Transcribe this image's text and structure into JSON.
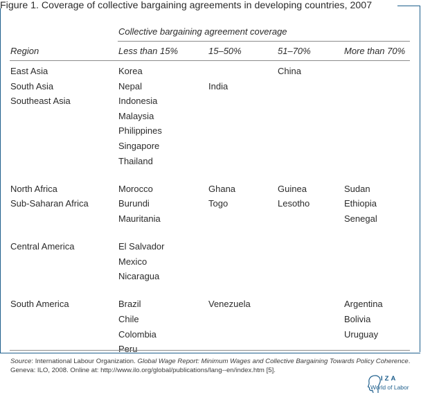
{
  "figure": {
    "title": "Figure 1. Coverage of collective bargaining agreements in developing countries, 2007"
  },
  "table": {
    "spanner": "Collective bargaining agreement coverage",
    "columns": [
      "Region",
      "Less than 15%",
      "15–50%",
      "51–70%",
      "More than 70%"
    ],
    "groups": [
      {
        "rows": [
          {
            "region": "East Asia",
            "lt15": [
              "Korea"
            ],
            "c15_50": [],
            "c51_70": [
              "China"
            ],
            "gt70": []
          },
          {
            "region": "South Asia",
            "lt15": [
              "Nepal"
            ],
            "c15_50": [
              "India"
            ],
            "c51_70": [],
            "gt70": []
          },
          {
            "region": "Southeast Asia",
            "lt15": [
              "Indonesia",
              "Malaysia",
              "Philippines",
              "Singapore",
              "Thailand"
            ],
            "c15_50": [],
            "c51_70": [],
            "gt70": []
          }
        ]
      },
      {
        "rows": [
          {
            "region": "North Africa",
            "lt15": [
              "Morocco"
            ],
            "c15_50": [
              "Ghana"
            ],
            "c51_70": [
              "Guinea"
            ],
            "gt70": [
              "Sudan"
            ]
          },
          {
            "region": "Sub-Saharan Africa",
            "lt15": [
              "Burundi",
              "Mauritania"
            ],
            "c15_50": [
              "Togo"
            ],
            "c51_70": [
              "Lesotho"
            ],
            "gt70": [
              "Ethiopia",
              "Senegal"
            ]
          }
        ]
      },
      {
        "rows": [
          {
            "region": "Central America",
            "lt15": [
              "El Salvador",
              "Mexico",
              "Nicaragua"
            ],
            "c15_50": [],
            "c51_70": [],
            "gt70": []
          }
        ]
      },
      {
        "rows": [
          {
            "region": "South America",
            "lt15": [
              "Brazil",
              "Chile",
              "Colombia",
              "Peru"
            ],
            "c15_50": [
              "Venezuela"
            ],
            "c51_70": [],
            "gt70": [
              "Argentina",
              "Bolivia",
              "Uruguay"
            ]
          }
        ]
      }
    ]
  },
  "source": {
    "label": "Source",
    "text1": ": International Labour Organization. ",
    "report": "Global Wage Report: Minimum Wages and Collective Bargaining Towards Policy Coherence",
    "text2": ". Geneva: ILO, 2008. Online at: http://www.ilo.org/global/publications/lang--en/index.htm [5]."
  },
  "logo": {
    "name": "IZA",
    "tagline": "World of Labor",
    "color": "#1d5e8c"
  }
}
